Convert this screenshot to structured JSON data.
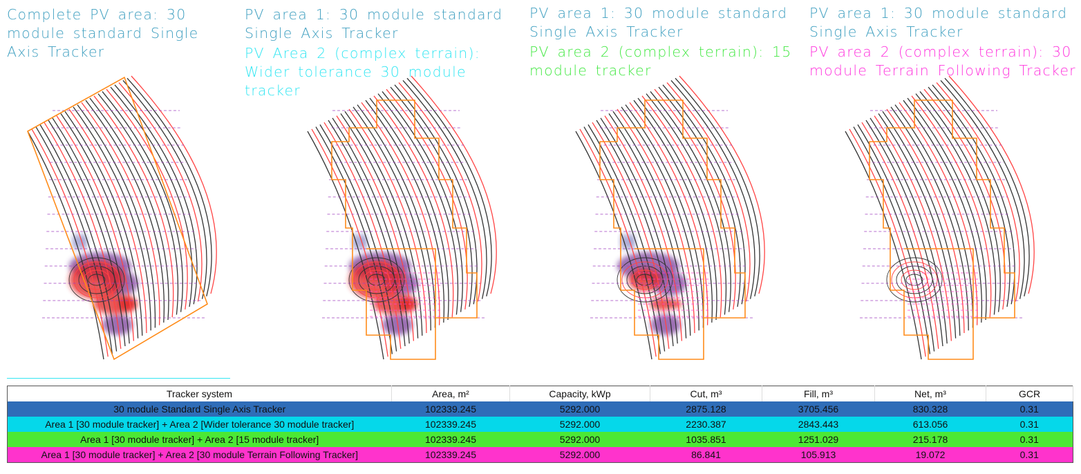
{
  "panels": [
    {
      "title_lines": [
        "Complete PV area: 30",
        "module standard Single",
        "Axis Tracker"
      ],
      "subtitle_lines": [],
      "subtitle_color": "#3f9fc0"
    },
    {
      "title_lines": [
        "PV area 1: 30 module standard",
        "Single Axis Tracker"
      ],
      "subtitle_lines": [
        "PV Area 2 (complex terrain):",
        "Wider tolerance 30 module",
        "tracker"
      ],
      "subtitle_color": "#33e6f2"
    },
    {
      "title_lines": [
        "PV area 1: 30 module standard",
        "Single Axis Tracker"
      ],
      "subtitle_lines": [
        "PV area 2 (complex terrain): 15",
        "module tracker"
      ],
      "subtitle_color": "#44e844"
    },
    {
      "title_lines": [
        "PV area 1: 30 module standard",
        "Single Axis Tracker"
      ],
      "subtitle_lines": [
        "PV area 2 (complex terrain): 30",
        "module Terrain Following Tracker"
      ],
      "subtitle_color": "#ff33dd"
    }
  ],
  "table": {
    "headers": [
      "Tracker system",
      "Area, m²",
      "Capacity, kWp",
      "Cut, m³",
      "Fill, m³",
      "Net, m³",
      "GCR"
    ],
    "rows": [
      {
        "color": "#2f6db8",
        "cells": [
          "30 module Standard Single Axis Tracker",
          "102339.245",
          "5292.000",
          "2875.128",
          "3705.456",
          "830.328",
          "0.31"
        ]
      },
      {
        "color": "#05d8ea",
        "cells": [
          "Area 1 [30 module tracker] + Area 2 [Wider tolerance 30 module tracker]",
          "102339.245",
          "5292.000",
          "2230.387",
          "2843.443",
          "613.056",
          "0.31"
        ]
      },
      {
        "color": "#4ce835",
        "cells": [
          "Area 1 [30 module tracker] + Area 2 [15 module tracker]",
          "102339.245",
          "5292.000",
          "1035.851",
          "1251.029",
          "215.178",
          "0.31"
        ]
      },
      {
        "color": "#ff33cc",
        "cells": [
          "Area 1 [30 module tracker] + Area 2 [30 module Terrain Following Tracker]",
          "102339.245",
          "5292.000",
          "86.841",
          "105.913",
          "19.072",
          "0.31"
        ]
      }
    ]
  }
}
